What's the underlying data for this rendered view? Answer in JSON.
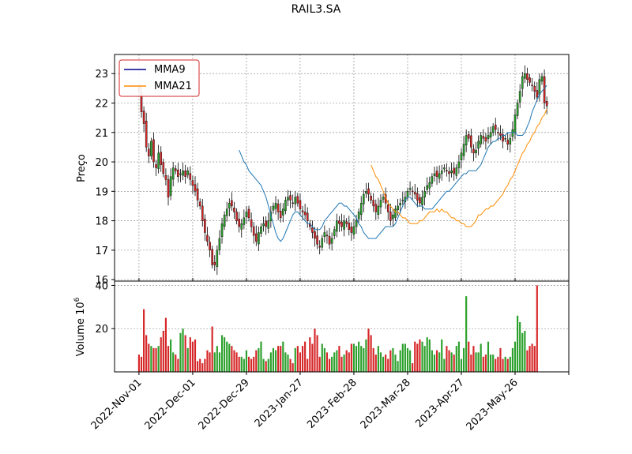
{
  "chart_data": {
    "type": "candlestick",
    "title": "RAIL3.SA",
    "ylabel_price": "Preço",
    "ylabel_volume": "Volume",
    "volume_exponent": "6",
    "price_ylim": [
      15.95,
      23.65
    ],
    "price_yticks": [
      16,
      17,
      18,
      19,
      20,
      21,
      22,
      23
    ],
    "volume_ylim": [
      0,
      42
    ],
    "volume_yticks": [
      20,
      40
    ],
    "x_tick_labels": [
      "2022-Nov-01",
      "2022-Dec-01",
      "2022-Dec-29",
      "2023-Jan-27",
      "2023-Feb-28",
      "2023-Mar-28",
      "2023-Apr-27",
      "2023-May-26"
    ],
    "x_tick_positions": [
      0,
      22,
      44,
      66,
      88,
      110,
      132,
      154
    ],
    "x_range": [
      -10,
      176
    ],
    "grid": true,
    "legend_position": "upper-left",
    "legend": [
      {
        "name": "MMA9",
        "color": "#00008b"
      },
      {
        "name": "MMA21",
        "color": "#ff8c00"
      }
    ],
    "colors": {
      "up": "#2ca02c",
      "down": "#d62728",
      "wick": "#000000",
      "grid": "#808080"
    },
    "closes": [
      22.4,
      21.7,
      21.3,
      20.5,
      20.2,
      20.7,
      20.0,
      19.8,
      20.3,
      19.9,
      19.6,
      19.4,
      18.8,
      19.5,
      19.8,
      19.7,
      19.5,
      19.6,
      19.7,
      19.5,
      19.7,
      19.4,
      19.2,
      19.0,
      18.7,
      18.5,
      18.0,
      17.6,
      17.3,
      17.0,
      16.5,
      16.5,
      17.0,
      17.4,
      17.9,
      18.2,
      18.4,
      18.6,
      18.5,
      18.3,
      18.0,
      17.8,
      17.9,
      18.1,
      18.3,
      18.1,
      17.8,
      17.5,
      17.3,
      17.6,
      17.8,
      17.9,
      17.8,
      18.0,
      18.3,
      18.5,
      18.6,
      18.3,
      18.1,
      18.4,
      18.7,
      18.8,
      18.7,
      18.6,
      18.8,
      18.6,
      18.4,
      18.3,
      18.2,
      18.0,
      17.8,
      17.6,
      17.4,
      17.2,
      17.1,
      17.4,
      17.6,
      17.5,
      17.2,
      17.4,
      17.7,
      18.0,
      17.9,
      17.8,
      18.0,
      17.9,
      17.7,
      17.6,
      17.8,
      18.0,
      18.3,
      18.6,
      18.9,
      19.0,
      18.9,
      18.7,
      18.5,
      18.3,
      18.5,
      18.7,
      18.8,
      18.6,
      18.3,
      18.0,
      18.2,
      18.4,
      18.5,
      18.6,
      18.7,
      18.8,
      19.0,
      19.1,
      19.0,
      18.9,
      18.7,
      18.6,
      18.8,
      19.0,
      19.2,
      19.3,
      19.5,
      19.6,
      19.5,
      19.6,
      19.7,
      19.8,
      19.7,
      19.6,
      19.7,
      19.6,
      19.8,
      20.0,
      20.3,
      20.6,
      20.9,
      20.8,
      20.5,
      20.3,
      20.4,
      20.7,
      20.9,
      20.8,
      20.7,
      20.9,
      21.0,
      21.2,
      21.1,
      21.0,
      20.9,
      20.7,
      20.8,
      20.6,
      20.8,
      21.1,
      21.6,
      22.0,
      22.4,
      22.9,
      23.0,
      22.8,
      22.7,
      22.6,
      22.4,
      22.2,
      22.8,
      22.9,
      22.0,
      21.9
    ],
    "volumes": [
      8,
      7,
      29,
      17,
      13,
      12,
      11,
      11,
      12,
      16,
      19,
      25,
      12,
      15,
      9,
      8,
      6,
      18,
      20,
      17,
      11,
      16,
      14,
      15,
      5,
      6,
      4,
      6,
      10,
      9,
      21,
      9,
      12,
      9,
      17,
      16,
      14,
      13,
      12,
      10,
      9,
      7,
      7,
      6,
      10,
      7,
      6,
      7,
      10,
      11,
      14,
      6,
      5,
      6,
      9,
      11,
      10,
      12,
      12,
      14,
      9,
      8,
      6,
      4,
      11,
      12,
      9,
      12,
      14,
      6,
      16,
      13,
      20,
      17,
      7,
      13,
      11,
      9,
      6,
      7,
      9,
      10,
      12,
      7,
      8,
      10,
      9,
      13,
      13,
      12,
      14,
      12,
      11,
      15,
      20,
      17,
      11,
      8,
      12,
      9,
      7,
      8,
      6,
      10,
      11,
      8,
      5,
      10,
      13,
      13,
      11,
      10,
      4,
      14,
      13,
      15,
      14,
      12,
      16,
      15,
      10,
      8,
      10,
      9,
      15,
      6,
      12,
      10,
      9,
      8,
      12,
      14,
      6,
      11,
      35,
      14,
      8,
      12,
      9,
      9,
      13,
      7,
      8,
      14,
      8,
      8,
      6,
      7,
      11,
      6,
      7,
      6,
      7,
      11,
      14,
      26,
      23,
      18,
      19,
      10,
      12,
      13,
      12,
      40
    ],
    "ma9": [
      20.4,
      20.2,
      20.0,
      19.9,
      19.7,
      19.6,
      19.5,
      19.4,
      19.3,
      19.2,
      19.0,
      18.8,
      18.5,
      18.2,
      17.9,
      17.6,
      17.4,
      17.3,
      17.4,
      17.6,
      17.8,
      18.0,
      18.2,
      18.3,
      18.3,
      18.2,
      18.1,
      18.0,
      17.9,
      17.9,
      17.8,
      17.7,
      17.7,
      17.7,
      17.8,
      18.0,
      18.1,
      18.2,
      18.3,
      18.4,
      18.5,
      18.6,
      18.6,
      18.5,
      18.5,
      18.4,
      18.3,
      18.2,
      18.1,
      17.9,
      17.8,
      17.6,
      17.5,
      17.4,
      17.4,
      17.4,
      17.4,
      17.5,
      17.6,
      17.7,
      17.8,
      17.8,
      17.8,
      17.8,
      17.9,
      18.1,
      18.3,
      18.5,
      18.7,
      18.8,
      18.8,
      18.7,
      18.6,
      18.5,
      18.5,
      18.5,
      18.4,
      18.4,
      18.4,
      18.4,
      18.5,
      18.6,
      18.7,
      18.8,
      18.9,
      19.0,
      19.0,
      19.1,
      19.2,
      19.3,
      19.4,
      19.5,
      19.6,
      19.6,
      19.7,
      19.7,
      19.7,
      19.7,
      19.8,
      19.9,
      20.1,
      20.3,
      20.5,
      20.6,
      20.7,
      20.7,
      20.8,
      20.8,
      20.9,
      20.9,
      21.0,
      21.0,
      21.0,
      21.0,
      20.9,
      20.9,
      20.9,
      21.0,
      21.2,
      21.4,
      21.7,
      21.9,
      22.1,
      22.3,
      22.4,
      22.5,
      22.6
    ],
    "ma21": [
      19.9,
      19.7,
      19.5,
      19.4,
      19.2,
      19.0,
      18.8,
      18.6,
      18.5,
      18.4,
      18.3,
      18.3,
      18.2,
      18.1,
      18.1,
      18.0,
      17.9,
      17.9,
      17.9,
      17.9,
      18.0,
      18.0,
      18.1,
      18.2,
      18.3,
      18.3,
      18.3,
      18.4,
      18.3,
      18.4,
      18.3,
      18.3,
      18.2,
      18.1,
      18.1,
      18.0,
      18.0,
      17.9,
      17.9,
      17.8,
      17.8,
      17.8,
      17.9,
      18.0,
      18.2,
      18.2,
      18.3,
      18.4,
      18.4,
      18.5,
      18.5,
      18.6,
      18.7,
      18.8,
      18.9,
      19.1,
      19.2,
      19.4,
      19.5,
      19.7,
      19.9,
      20.1,
      20.3,
      20.4,
      20.6,
      20.7,
      20.9,
      21.0,
      21.2,
      21.3,
      21.5,
      21.6,
      21.8
    ]
  }
}
